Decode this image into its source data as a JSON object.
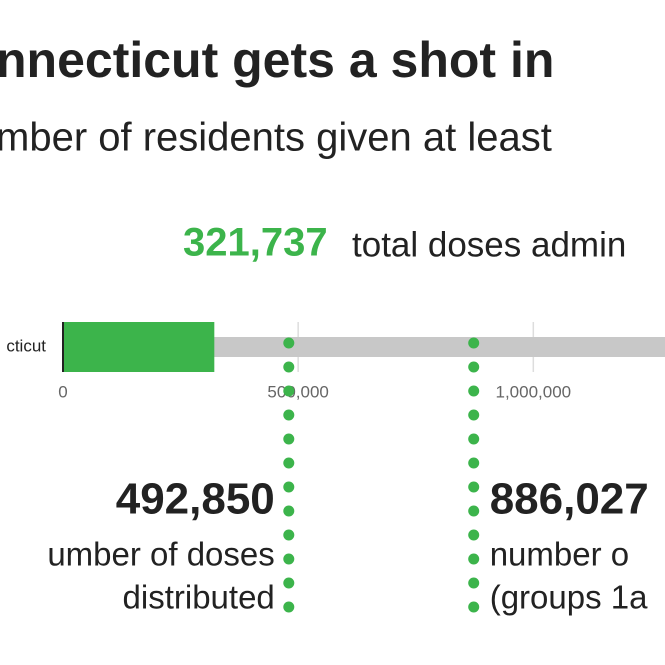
{
  "chart_data": {
    "type": "bar",
    "title": "nnecticut gets a shot in",
    "subtitle": "mber of residents given at least",
    "total": {
      "value": 321737,
      "label": "321,737",
      "text": "total doses admin"
    },
    "categories": [
      "cticut"
    ],
    "series": [
      {
        "color": "#c8c8c8",
        "values": [
          1300000
        ]
      },
      {
        "color": "#3cb44b",
        "values": [
          321737
        ]
      }
    ],
    "xlim": [
      0,
      1280000
    ],
    "xticks": [
      0,
      {
        "value": 500000,
        "label": "500,000"
      },
      {
        "value": 1000000,
        "label": "1,000,000"
      }
    ],
    "grid": true,
    "marker_color": "#3cb44b",
    "annotations": [
      {
        "value": 492850,
        "value_label": "492,850",
        "lines": [
          "umber of doses",
          "distributed"
        ],
        "side": "left"
      },
      {
        "value": 886027,
        "value_label": "886,027",
        "lines": [
          "number o",
          "(groups 1a"
        ],
        "side": "right"
      }
    ]
  }
}
